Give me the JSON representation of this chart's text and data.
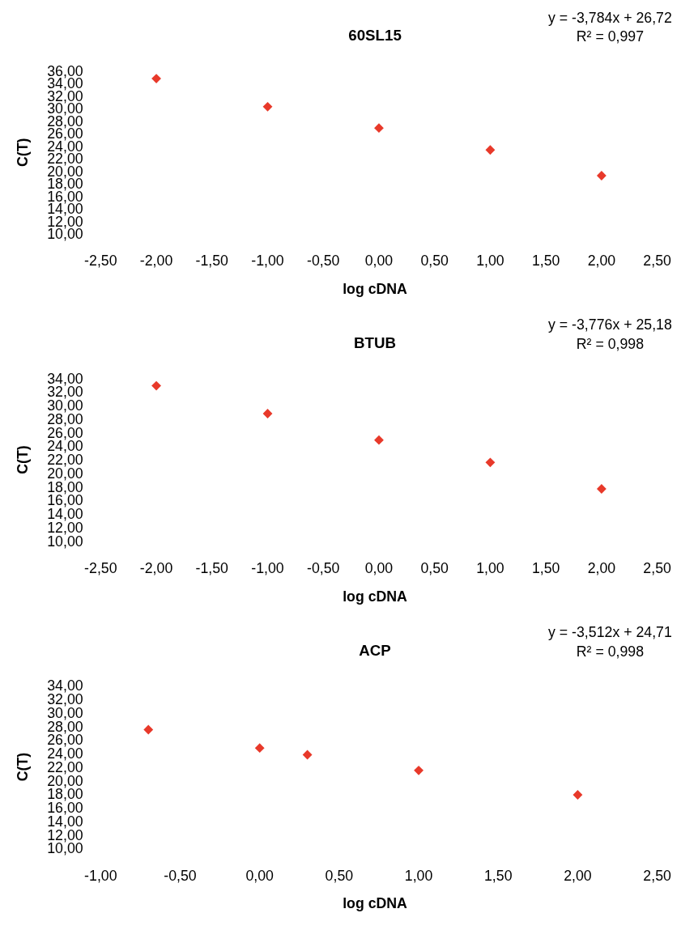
{
  "chart_data": [
    {
      "type": "scatter",
      "title": "60SL15",
      "xlabel": "log cDNA",
      "ylabel": "C(T)",
      "marker": "diamond",
      "grid": false,
      "annotations": [
        "y = -3,784x + 26,72",
        "R² = 0,997"
      ],
      "series": [
        {
          "color": "#e8392a",
          "x": [
            -2,
            -1,
            0,
            1,
            2
          ],
          "values": [
            34.8,
            30.3,
            26.9,
            23.4,
            19.3
          ]
        }
      ],
      "xlim": [
        -2.5,
        2.5
      ],
      "xticks": [
        {
          "value": -2.5,
          "label": "-2,50"
        },
        {
          "value": -2,
          "label": "-2,00"
        },
        {
          "value": -1.5,
          "label": "-1,50"
        },
        {
          "value": -1,
          "label": "-1,00"
        },
        {
          "value": -0.5,
          "label": "-0,50"
        },
        {
          "value": 0,
          "label": "0,00"
        },
        {
          "value": 0.5,
          "label": "0,50"
        },
        {
          "value": 1,
          "label": "1,00"
        },
        {
          "value": 1.5,
          "label": "1,50"
        },
        {
          "value": 2,
          "label": "2,00"
        },
        {
          "value": 2.5,
          "label": "2,50"
        }
      ],
      "ylim": [
        10,
        36
      ],
      "yticks": [
        {
          "value": 10,
          "label": "10,00"
        },
        {
          "value": 12,
          "label": "12,00"
        },
        {
          "value": 14,
          "label": "14,00"
        },
        {
          "value": 16,
          "label": "16,00"
        },
        {
          "value": 18,
          "label": "18,00"
        },
        {
          "value": 20,
          "label": "20,00"
        },
        {
          "value": 22,
          "label": "22,00"
        },
        {
          "value": 24,
          "label": "24,00"
        },
        {
          "value": 26,
          "label": "26,00"
        },
        {
          "value": 28,
          "label": "28,00"
        },
        {
          "value": 30,
          "label": "30,00"
        },
        {
          "value": 32,
          "label": "32,00"
        },
        {
          "value": 34,
          "label": "34,00"
        },
        {
          "value": 36,
          "label": "36,00"
        }
      ]
    },
    {
      "type": "scatter",
      "title": "BTUB",
      "xlabel": "log cDNA",
      "ylabel": "C(T)",
      "marker": "diamond",
      "grid": false,
      "annotations": [
        "y = -3,776x + 25,18",
        "R² = 0,998"
      ],
      "series": [
        {
          "color": "#e8392a",
          "x": [
            -2,
            -1,
            0,
            1,
            2
          ],
          "values": [
            32.9,
            28.8,
            24.9,
            21.6,
            17.7
          ]
        }
      ],
      "xlim": [
        -2.5,
        2.5
      ],
      "xticks": [
        {
          "value": -2.5,
          "label": "-2,50"
        },
        {
          "value": -2,
          "label": "-2,00"
        },
        {
          "value": -1.5,
          "label": "-1,50"
        },
        {
          "value": -1,
          "label": "-1,00"
        },
        {
          "value": -0.5,
          "label": "-0,50"
        },
        {
          "value": 0,
          "label": "0,00"
        },
        {
          "value": 0.5,
          "label": "0,50"
        },
        {
          "value": 1,
          "label": "1,00"
        },
        {
          "value": 1.5,
          "label": "1,50"
        },
        {
          "value": 2,
          "label": "2,00"
        },
        {
          "value": 2.5,
          "label": "2,50"
        }
      ],
      "ylim": [
        10,
        34
      ],
      "yticks": [
        {
          "value": 10,
          "label": "10,00"
        },
        {
          "value": 12,
          "label": "12,00"
        },
        {
          "value": 14,
          "label": "14,00"
        },
        {
          "value": 16,
          "label": "16,00"
        },
        {
          "value": 18,
          "label": "18,00"
        },
        {
          "value": 20,
          "label": "20,00"
        },
        {
          "value": 22,
          "label": "22,00"
        },
        {
          "value": 24,
          "label": "24,00"
        },
        {
          "value": 26,
          "label": "26,00"
        },
        {
          "value": 28,
          "label": "28,00"
        },
        {
          "value": 30,
          "label": "30,00"
        },
        {
          "value": 32,
          "label": "32,00"
        },
        {
          "value": 34,
          "label": "34,00"
        }
      ]
    },
    {
      "type": "scatter",
      "title": "ACP",
      "xlabel": "log cDNA",
      "ylabel": "C(T)",
      "marker": "diamond",
      "grid": false,
      "annotations": [
        "y = -3,512x + 24,71",
        "R² = 0,998"
      ],
      "series": [
        {
          "color": "#e8392a",
          "x": [
            -0.7,
            0,
            0.3,
            1,
            2
          ],
          "values": [
            27.5,
            24.8,
            23.8,
            21.5,
            17.9
          ]
        }
      ],
      "xlim": [
        -1,
        2.5
      ],
      "xticks": [
        {
          "value": -1,
          "label": "-1,00"
        },
        {
          "value": -0.5,
          "label": "-0,50"
        },
        {
          "value": 0,
          "label": "0,00"
        },
        {
          "value": 0.5,
          "label": "0,50"
        },
        {
          "value": 1,
          "label": "1,00"
        },
        {
          "value": 1.5,
          "label": "1,50"
        },
        {
          "value": 2,
          "label": "2,00"
        },
        {
          "value": 2.5,
          "label": "2,50"
        }
      ],
      "ylim": [
        10,
        34
      ],
      "yticks": [
        {
          "value": 10,
          "label": "10,00"
        },
        {
          "value": 12,
          "label": "12,00"
        },
        {
          "value": 14,
          "label": "14,00"
        },
        {
          "value": 16,
          "label": "16,00"
        },
        {
          "value": 18,
          "label": "18,00"
        },
        {
          "value": 20,
          "label": "20,00"
        },
        {
          "value": 22,
          "label": "22,00"
        },
        {
          "value": 24,
          "label": "24,00"
        },
        {
          "value": 26,
          "label": "26,00"
        },
        {
          "value": 28,
          "label": "28,00"
        },
        {
          "value": 30,
          "label": "30,00"
        },
        {
          "value": 32,
          "label": "32,00"
        },
        {
          "value": 34,
          "label": "34,00"
        }
      ]
    }
  ]
}
